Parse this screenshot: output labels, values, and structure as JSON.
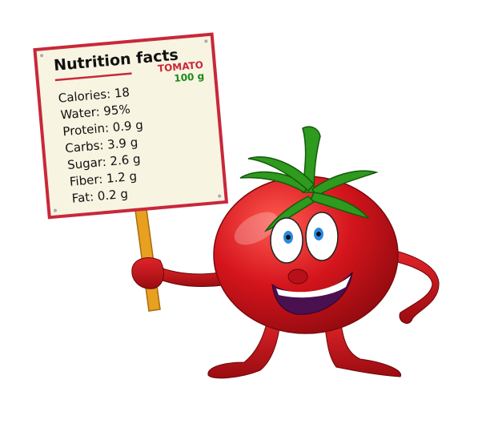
{
  "sign": {
    "title": "Nutrition facts",
    "product": "TOMATO",
    "serving": "100 g",
    "facts": [
      "Calories: 18",
      "Water: 95%",
      "Protein: 0.9 g",
      "Carbs: 3.9 g",
      "Sugar: 2.6 g",
      "Fiber: 1.2 g",
      "Fat: 0.2 g"
    ]
  },
  "colors": {
    "tomato_red": "#d4141c",
    "sign_border": "#c8283a",
    "sign_paper": "#f8f4e2",
    "leaf_green": "#2e9a1e",
    "serving_green": "#1a8a1a",
    "stick": "#e8a020"
  }
}
